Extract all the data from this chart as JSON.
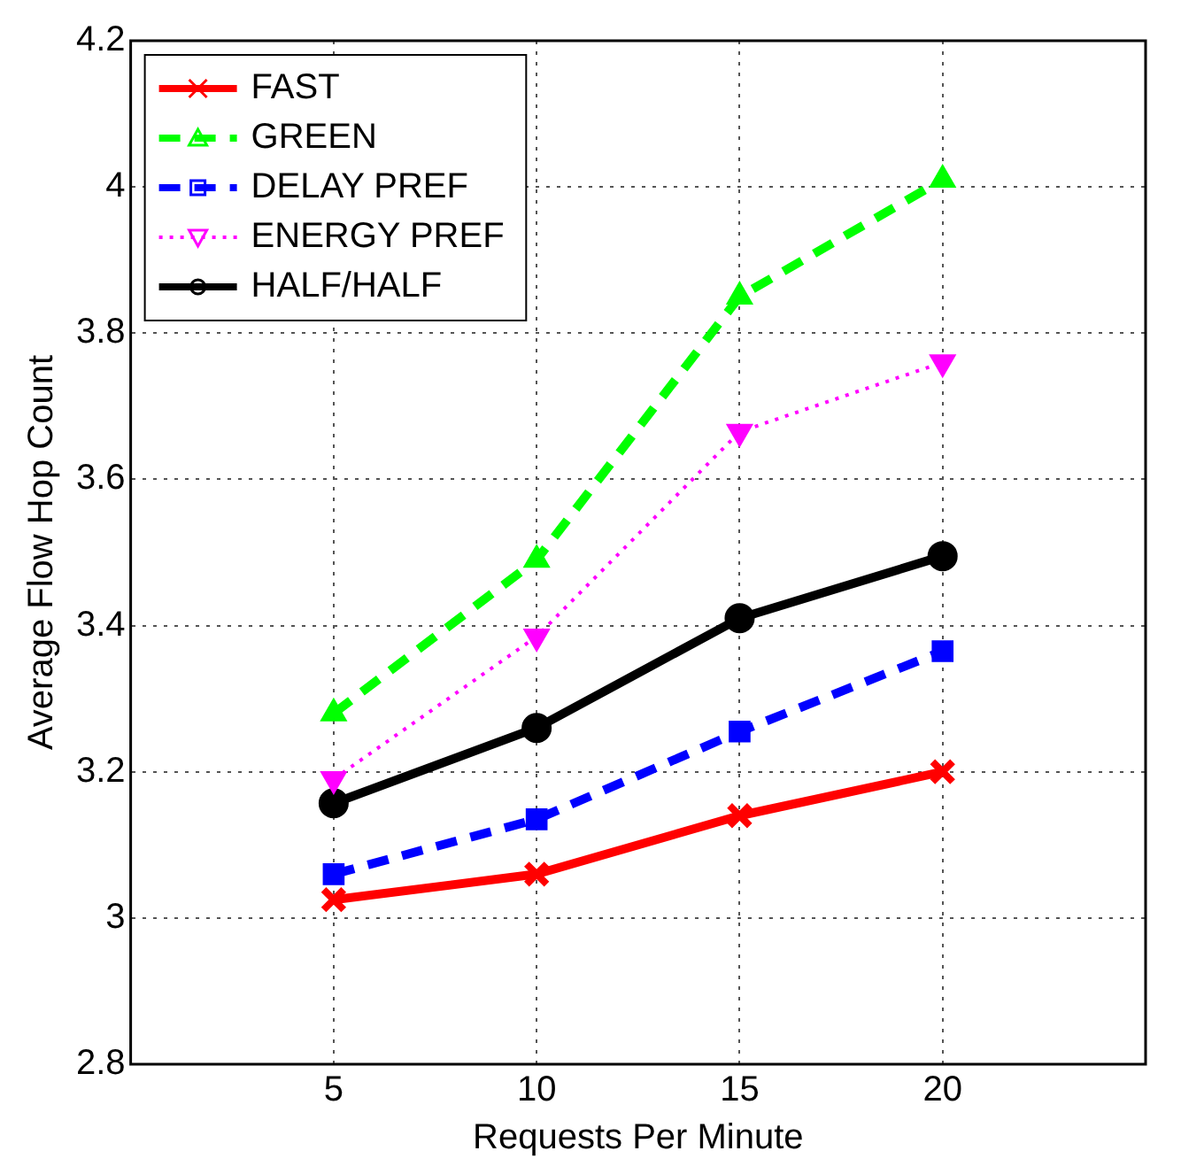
{
  "chart_data": {
    "type": "line",
    "xlabel": "Requests Per Minute",
    "ylabel": "Average Flow Hop Count",
    "x": [
      5,
      10,
      15,
      20
    ],
    "xlim": [
      0,
      25
    ],
    "xticks": [
      5,
      10,
      15,
      20
    ],
    "ylim": [
      2.8,
      4.2
    ],
    "yticks": [
      2.8,
      3,
      3.2,
      3.4,
      3.6,
      3.8,
      4,
      4.2
    ],
    "grid": true,
    "legend": "top left",
    "series": [
      {
        "name": "FAST",
        "color": "#ff0000",
        "marker": "cross",
        "line_style": "solid",
        "values": [
          3.025,
          3.06,
          3.14,
          3.2
        ]
      },
      {
        "name": "GREEN",
        "color": "#00ff00",
        "marker": "triangle",
        "line_style": "dashed",
        "values": [
          3.28,
          3.49,
          3.85,
          4.01
        ]
      },
      {
        "name": "DELAY PREF",
        "color": "#0000ff",
        "marker": "square",
        "line_style": "dashed",
        "values": [
          3.06,
          3.135,
          3.255,
          3.365
        ]
      },
      {
        "name": "ENERGY PREF",
        "color": "#ff00ff",
        "marker": "triangle",
        "line_style": "dotted",
        "values": [
          3.19,
          3.385,
          3.665,
          3.76
        ]
      },
      {
        "name": "HALF/HALF",
        "color": "#000000",
        "marker": "circle",
        "line_style": "solid",
        "values": [
          3.157,
          3.26,
          3.41,
          3.495
        ]
      }
    ]
  }
}
